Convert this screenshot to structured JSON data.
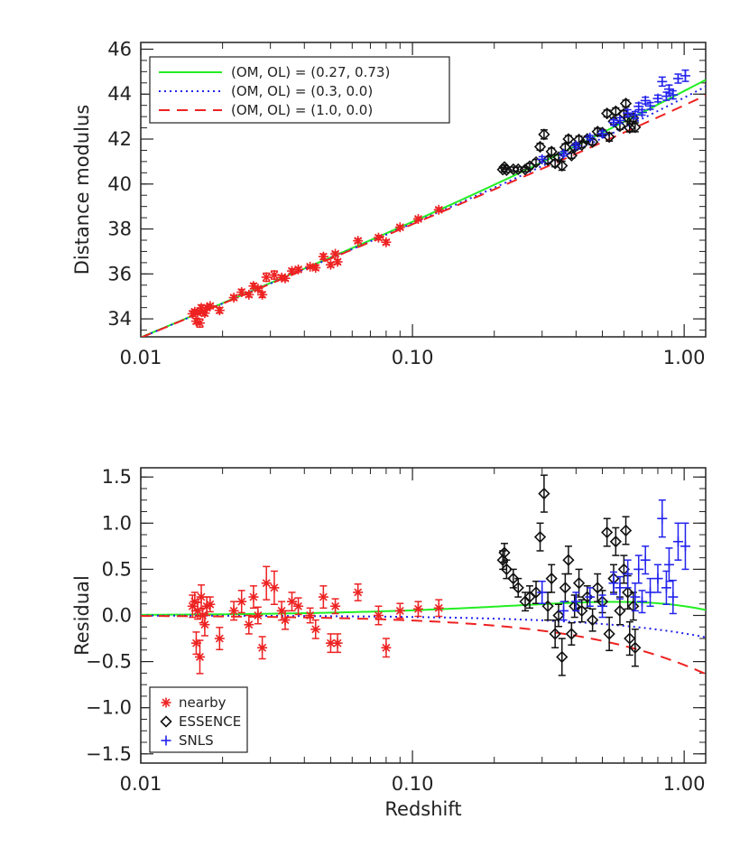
{
  "chart_data": [
    {
      "type": "scatter",
      "xscale": "log",
      "xlim": [
        0.01,
        1.2
      ],
      "ylim": [
        33.2,
        46.3
      ],
      "xticks": [
        0.01,
        0.1,
        1.0
      ],
      "xtick_labels": [
        "0.01",
        "0.10",
        "1.00"
      ],
      "yticks": [
        34,
        36,
        38,
        40,
        42,
        44,
        46
      ],
      "ytick_labels": [
        "34",
        "36",
        "38",
        "40",
        "42",
        "44",
        "46"
      ],
      "xlabel": "",
      "ylabel": "Distance modulus",
      "grid": false,
      "legend_placement": "top-left",
      "legend_entries": [
        "(OM, OL) = (0.27, 0.73)",
        "(OM, OL) = (0.3, 0.0)",
        "(OM, OL) = (1.0, 0.0)"
      ],
      "model_curves": [
        {
          "label": "(OM, OL) = (0.27, 0.73)",
          "om": 0.27,
          "ol": 0.73,
          "color": "#22ee22",
          "style": "solid"
        },
        {
          "label": "(OM, OL) = (0.3, 0.0)",
          "om": 0.3,
          "ol": 0.0,
          "color": "#2222ee",
          "style": "dotted"
        },
        {
          "label": "(OM, OL) = (1.0, 0.0)",
          "om": 1.0,
          "ol": 0.0,
          "color": "#ee2222",
          "style": "dashed"
        }
      ],
      "reference_model": {
        "om": 0.27,
        "ol": 0.73
      }
    },
    {
      "type": "scatter",
      "xscale": "log",
      "xlim": [
        0.01,
        1.2
      ],
      "ylim": [
        -1.6,
        1.6
      ],
      "xticks": [
        0.01,
        0.1,
        1.0
      ],
      "xtick_labels": [
        "0.01",
        "0.10",
        "1.00"
      ],
      "yticks": [
        -1.5,
        -1.0,
        -0.5,
        0.0,
        0.5,
        1.0,
        1.5
      ],
      "ytick_labels": [
        "-1.5",
        "-1.0",
        "-0.5",
        "0.0",
        "0.5",
        "1.0",
        "1.5"
      ],
      "xlabel": "Redshift",
      "ylabel": "Residual",
      "grid": false,
      "legend_placement": "bottom-left",
      "series": [
        {
          "name": "nearby",
          "marker": "asterisk",
          "color": "#ee2222",
          "points": [
            [
              0.0155,
              0.1,
              0.12
            ],
            [
              0.0158,
              0.15,
              0.1
            ],
            [
              0.016,
              -0.3,
              0.12
            ],
            [
              0.0162,
              0.05,
              0.09
            ],
            [
              0.0165,
              -0.45,
              0.18
            ],
            [
              0.0167,
              0.2,
              0.13
            ],
            [
              0.0169,
              0.0,
              0.08
            ],
            [
              0.0172,
              -0.1,
              0.12
            ],
            [
              0.0175,
              0.1,
              0.1
            ],
            [
              0.018,
              0.12,
              0.08
            ],
            [
              0.0195,
              -0.25,
              0.12
            ],
            [
              0.022,
              0.05,
              0.1
            ],
            [
              0.0235,
              0.15,
              0.12
            ],
            [
              0.025,
              -0.1,
              0.1
            ],
            [
              0.026,
              0.2,
              0.12
            ],
            [
              0.027,
              0.0,
              0.09
            ],
            [
              0.028,
              -0.35,
              0.12
            ],
            [
              0.029,
              0.35,
              0.18
            ],
            [
              0.031,
              0.3,
              0.18
            ],
            [
              0.033,
              0.05,
              0.1
            ],
            [
              0.034,
              -0.05,
              0.1
            ],
            [
              0.036,
              0.15,
              0.1
            ],
            [
              0.038,
              0.1,
              0.09
            ],
            [
              0.042,
              0.0,
              0.08
            ],
            [
              0.044,
              -0.15,
              0.1
            ],
            [
              0.047,
              0.2,
              0.12
            ],
            [
              0.05,
              -0.3,
              0.1
            ],
            [
              0.052,
              0.1,
              0.08
            ],
            [
              0.053,
              -0.3,
              0.1
            ],
            [
              0.063,
              0.25,
              0.09
            ],
            [
              0.075,
              0.0,
              0.1
            ],
            [
              0.08,
              -0.35,
              0.1
            ],
            [
              0.09,
              0.05,
              0.08
            ],
            [
              0.105,
              0.07,
              0.08
            ],
            [
              0.125,
              0.08,
              0.09
            ]
          ]
        },
        {
          "name": "ESSENCE",
          "marker": "diamond",
          "color": "#111111",
          "points": [
            [
              0.215,
              0.6,
              0.1
            ],
            [
              0.218,
              0.68,
              0.1
            ],
            [
              0.222,
              0.5,
              0.1
            ],
            [
              0.235,
              0.4,
              0.1
            ],
            [
              0.245,
              0.3,
              0.1
            ],
            [
              0.26,
              0.15,
              0.1
            ],
            [
              0.27,
              0.2,
              0.12
            ],
            [
              0.285,
              0.25,
              0.12
            ],
            [
              0.295,
              0.85,
              0.15
            ],
            [
              0.305,
              1.32,
              0.2
            ],
            [
              0.315,
              0.1,
              0.15
            ],
            [
              0.325,
              0.4,
              0.15
            ],
            [
              0.335,
              -0.2,
              0.15
            ],
            [
              0.345,
              0.0,
              0.12
            ],
            [
              0.355,
              -0.45,
              0.2
            ],
            [
              0.365,
              0.3,
              0.15
            ],
            [
              0.375,
              0.6,
              0.15
            ],
            [
              0.385,
              -0.2,
              0.12
            ],
            [
              0.395,
              0.1,
              0.12
            ],
            [
              0.41,
              0.35,
              0.15
            ],
            [
              0.42,
              0.05,
              0.12
            ],
            [
              0.44,
              0.2,
              0.12
            ],
            [
              0.46,
              -0.05,
              0.12
            ],
            [
              0.48,
              0.3,
              0.15
            ],
            [
              0.5,
              0.15,
              0.12
            ],
            [
              0.52,
              0.9,
              0.15
            ],
            [
              0.53,
              -0.2,
              0.18
            ],
            [
              0.55,
              0.4,
              0.15
            ],
            [
              0.56,
              0.8,
              0.15
            ],
            [
              0.58,
              0.05,
              0.15
            ],
            [
              0.6,
              0.5,
              0.15
            ],
            [
              0.61,
              0.92,
              0.15
            ],
            [
              0.62,
              0.25,
              0.18
            ],
            [
              0.63,
              -0.25,
              0.18
            ],
            [
              0.65,
              0.1,
              0.15
            ],
            [
              0.66,
              -0.35,
              0.2
            ]
          ]
        },
        {
          "name": "SNLS",
          "marker": "plus",
          "color": "#2222ee",
          "points": [
            [
              0.3,
              0.25,
              0.12
            ],
            [
              0.36,
              0.05,
              0.1
            ],
            [
              0.4,
              0.15,
              0.1
            ],
            [
              0.45,
              0.2,
              0.1
            ],
            [
              0.5,
              0.1,
              0.12
            ],
            [
              0.55,
              0.35,
              0.12
            ],
            [
              0.58,
              0.3,
              0.12
            ],
            [
              0.62,
              0.45,
              0.15
            ],
            [
              0.66,
              0.2,
              0.15
            ],
            [
              0.68,
              0.5,
              0.15
            ],
            [
              0.7,
              0.15,
              0.12
            ],
            [
              0.72,
              0.6,
              0.15
            ],
            [
              0.75,
              0.25,
              0.15
            ],
            [
              0.8,
              0.4,
              0.15
            ],
            [
              0.83,
              1.05,
              0.2
            ],
            [
              0.86,
              0.3,
              0.18
            ],
            [
              0.88,
              0.55,
              0.18
            ],
            [
              0.91,
              0.2,
              0.18
            ],
            [
              0.95,
              0.8,
              0.2
            ],
            [
              1.01,
              0.75,
              0.25
            ]
          ]
        }
      ],
      "model_curves": [
        {
          "om": 0.27,
          "ol": 0.73,
          "color": "#22ee22",
          "style": "solid"
        },
        {
          "om": 0.3,
          "ol": 0.0,
          "color": "#2222ee",
          "style": "dotted"
        },
        {
          "om": 1.0,
          "ol": 0.0,
          "color": "#ee2222",
          "style": "dashed"
        }
      ],
      "reference_model": {
        "om": 0.27,
        "ol": 0.73
      }
    }
  ]
}
